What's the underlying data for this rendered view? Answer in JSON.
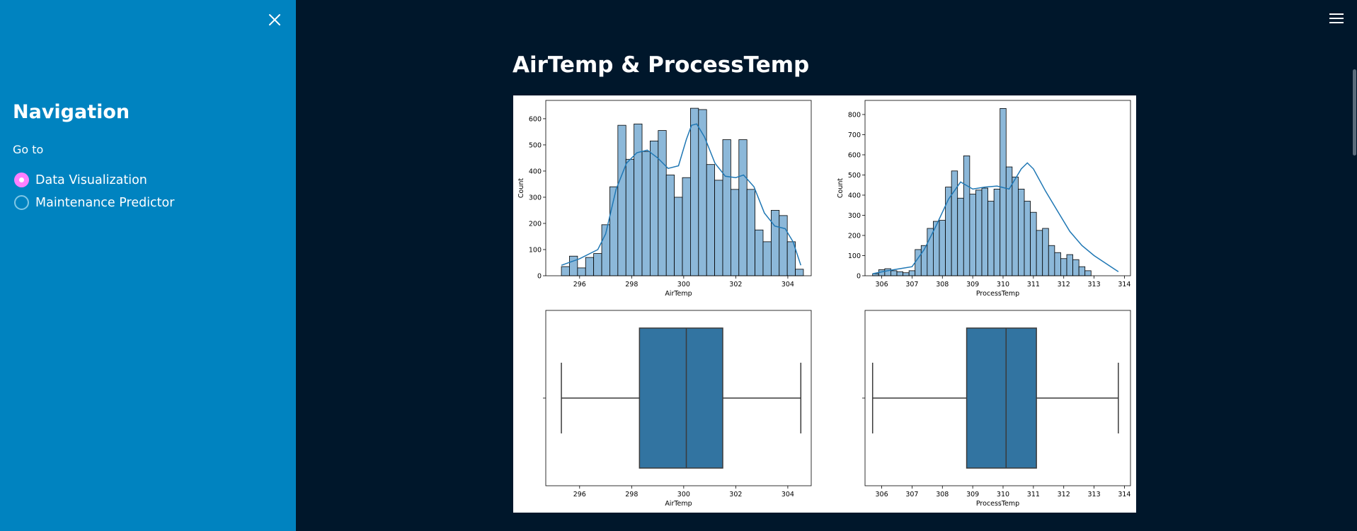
{
  "sidebar": {
    "title": "Navigation",
    "goto_label": "Go to",
    "options": [
      {
        "label": "Data Visualization",
        "selected": true
      },
      {
        "label": "Maintenance Predictor",
        "selected": false
      }
    ],
    "close_icon": "close-icon"
  },
  "header": {
    "menu_icon": "hamburger-menu-icon"
  },
  "main": {
    "title": "AirTemp & ProcessTemp"
  },
  "colors": {
    "sidebar_bg": "#0083c0",
    "main_bg": "#00172b",
    "radio_selected": "#ff80ff",
    "hist_fill": "#8cb8d9",
    "box_fill": "#3274a1",
    "kde_line": "#1f77b4"
  },
  "chart_data": [
    {
      "type": "histogram",
      "xlabel": "AirTemp",
      "ylabel": "Count",
      "xlim": [
        294.7,
        304.9
      ],
      "ylim": [
        0,
        670
      ],
      "xticks": [
        296,
        298,
        300,
        302,
        304
      ],
      "yticks": [
        0,
        100,
        200,
        300,
        400,
        500,
        600
      ],
      "bin_start": 295.3,
      "bin_width": 0.31,
      "counts": [
        35,
        75,
        30,
        70,
        85,
        195,
        340,
        575,
        445,
        580,
        475,
        515,
        555,
        385,
        300,
        375,
        640,
        635,
        425,
        365,
        520,
        330,
        520,
        330,
        175,
        130,
        250,
        230,
        130,
        25
      ],
      "kde": [
        [
          295.3,
          40
        ],
        [
          296,
          65
        ],
        [
          296.7,
          100
        ],
        [
          297,
          160
        ],
        [
          297.4,
          330
        ],
        [
          297.8,
          430
        ],
        [
          298.2,
          470
        ],
        [
          298.6,
          480
        ],
        [
          299,
          450
        ],
        [
          299.4,
          410
        ],
        [
          299.8,
          420
        ],
        [
          300.1,
          520
        ],
        [
          300.3,
          575
        ],
        [
          300.5,
          580
        ],
        [
          300.8,
          530
        ],
        [
          301.2,
          430
        ],
        [
          301.6,
          380
        ],
        [
          302,
          375
        ],
        [
          302.3,
          385
        ],
        [
          302.7,
          340
        ],
        [
          303.1,
          240
        ],
        [
          303.5,
          190
        ],
        [
          303.9,
          180
        ],
        [
          304.2,
          130
        ],
        [
          304.5,
          40
        ]
      ]
    },
    {
      "type": "histogram",
      "xlabel": "ProcessTemp",
      "ylabel": "Count",
      "xlim": [
        305.45,
        314.2
      ],
      "ylim": [
        0,
        870
      ],
      "xticks": [
        306,
        307,
        308,
        309,
        310,
        311,
        312,
        313,
        314
      ],
      "yticks": [
        0,
        100,
        200,
        300,
        400,
        500,
        600,
        700,
        800
      ],
      "bin_start": 305.7,
      "bin_width": 0.2,
      "counts": [
        10,
        30,
        35,
        25,
        20,
        15,
        25,
        130,
        150,
        235,
        270,
        275,
        440,
        520,
        385,
        595,
        405,
        425,
        435,
        370,
        430,
        830,
        540,
        490,
        430,
        370,
        315,
        225,
        235,
        150,
        115,
        85,
        105,
        80,
        45,
        25
      ],
      "kde": [
        [
          305.7,
          10
        ],
        [
          306.2,
          25
        ],
        [
          306.6,
          35
        ],
        [
          307,
          45
        ],
        [
          307.4,
          130
        ],
        [
          307.8,
          250
        ],
        [
          308.2,
          380
        ],
        [
          308.6,
          465
        ],
        [
          309,
          430
        ],
        [
          309.4,
          440
        ],
        [
          309.8,
          445
        ],
        [
          310.2,
          430
        ],
        [
          310.6,
          530
        ],
        [
          310.8,
          560
        ],
        [
          311,
          530
        ],
        [
          311.4,
          420
        ],
        [
          311.8,
          320
        ],
        [
          312.2,
          220
        ],
        [
          312.6,
          150
        ],
        [
          313,
          100
        ],
        [
          313.4,
          60
        ],
        [
          313.8,
          20
        ]
      ]
    },
    {
      "type": "boxplot",
      "xlabel": "AirTemp",
      "xlim": [
        294.7,
        304.9
      ],
      "xticks": [
        296,
        298,
        300,
        302,
        304
      ],
      "whisker_low": 295.3,
      "q1": 298.3,
      "median": 300.1,
      "q3": 301.5,
      "whisker_high": 304.5
    },
    {
      "type": "boxplot",
      "xlabel": "ProcessTemp",
      "xlim": [
        305.45,
        314.2
      ],
      "xticks": [
        306,
        307,
        308,
        309,
        310,
        311,
        312,
        313,
        314
      ],
      "whisker_low": 305.7,
      "q1": 308.8,
      "median": 310.1,
      "q3": 311.1,
      "whisker_high": 313.8
    }
  ]
}
